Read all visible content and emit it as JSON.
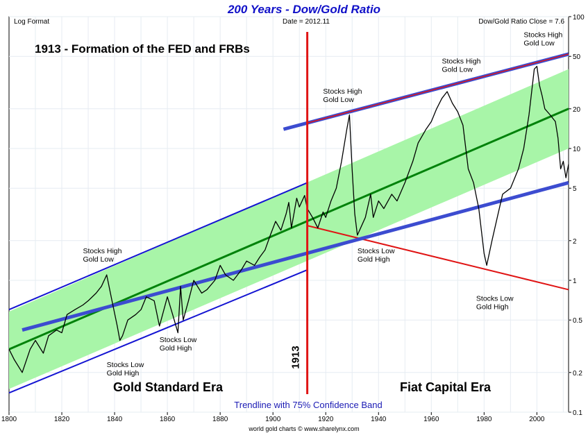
{
  "chart_data": {
    "type": "line",
    "title": "200 Years - Dow/Gold Ratio",
    "header_left": "Log Format",
    "header_date": "Date = 2012.11",
    "header_close": "Dow/Gold Ratio Close = 7.6",
    "headline": "1913 - Formation of the FED and FRBs",
    "marker_label": "1913",
    "marker_year": 1913,
    "era_left": "Gold Standard Era",
    "era_right": "Fiat Capital Era",
    "band_caption": "Trendline with 75% Confidence Band",
    "footer": "world gold charts © www.sharelynx.com",
    "x_range": [
      1800,
      2012
    ],
    "y_range": [
      0.1,
      100
    ],
    "y_scale": "log",
    "y_axis_side": "right",
    "grid": true,
    "x_ticks": [
      "1800",
      "1820",
      "1840",
      "1860",
      "1880",
      "1900",
      "1920",
      "1940",
      "1960",
      "1980",
      "2000"
    ],
    "y_ticks": [
      {
        "v": 100,
        "label": "100"
      },
      {
        "v": 50,
        "label": "50"
      },
      {
        "v": 20,
        "label": "20"
      },
      {
        "v": 10,
        "label": "10"
      },
      {
        "v": 5,
        "label": "5"
      },
      {
        "v": 2,
        "label": "2"
      },
      {
        "v": 1,
        "label": "1"
      },
      {
        "v": 0.5,
        "label": "0.5"
      },
      {
        "v": 0.2,
        "label": "0.2"
      },
      {
        "v": 0.1,
        "label": "0.1"
      }
    ],
    "colors": {
      "ratio": "#000000",
      "trend": "#00820a",
      "band": "#a8f5a8",
      "channel_old": "#1414d2",
      "channel_support": "#3c4cd0",
      "channel_new_top": "#e01414",
      "marker": "#e01414",
      "title": "#1010c8"
    },
    "series": [
      {
        "x": [
          1800,
          1802,
          1805,
          1808,
          1810,
          1813,
          1815,
          1818,
          1820,
          1822,
          1825,
          1828,
          1830,
          1833,
          1835,
          1837,
          1839,
          1841,
          1842,
          1843,
          1845,
          1848,
          1850,
          1852,
          1855,
          1857,
          1860,
          1862,
          1864,
          1865,
          1866,
          1868,
          1870,
          1873,
          1875,
          1878,
          1880,
          1882,
          1885,
          1888,
          1890,
          1893,
          1895,
          1897,
          1899,
          1901,
          1903,
          1905,
          1906,
          1907,
          1909,
          1910,
          1912,
          1913,
          1915,
          1917,
          1919,
          1920,
          1922,
          1924,
          1926,
          1928,
          1929,
          1930,
          1931,
          1932,
          1935,
          1937,
          1938,
          1940,
          1942,
          1945,
          1947,
          1950,
          1953,
          1955,
          1958,
          1960,
          1962,
          1964,
          1966,
          1968,
          1970,
          1972,
          1974,
          1976,
          1978,
          1980,
          1981,
          1983,
          1985,
          1987,
          1990,
          1993,
          1995,
          1997,
          1999,
          2000,
          2001,
          2002,
          2003,
          2005,
          2007,
          2008,
          2009,
          2010,
          2011,
          2012
        ],
        "y": [
          0.3,
          0.25,
          0.2,
          0.3,
          0.35,
          0.28,
          0.38,
          0.42,
          0.4,
          0.55,
          0.6,
          0.65,
          0.7,
          0.8,
          0.9,
          1.1,
          0.7,
          0.45,
          0.35,
          0.38,
          0.5,
          0.55,
          0.6,
          0.75,
          0.7,
          0.45,
          0.75,
          0.55,
          0.4,
          0.9,
          0.5,
          0.7,
          1.0,
          0.8,
          0.85,
          1.0,
          1.3,
          1.1,
          1.0,
          1.2,
          1.4,
          1.3,
          1.5,
          1.7,
          2.2,
          2.8,
          2.4,
          3.2,
          3.9,
          2.5,
          4.2,
          3.6,
          4.4,
          3.5,
          3.0,
          2.5,
          3.3,
          3.0,
          4.0,
          5.0,
          8.0,
          14.0,
          18.0,
          7.0,
          3.2,
          2.2,
          3.0,
          4.5,
          3.0,
          4.0,
          3.5,
          4.5,
          4.0,
          5.5,
          8.0,
          11.0,
          14.0,
          16.0,
          20.0,
          24.0,
          27.0,
          22.0,
          19.0,
          15.0,
          7.0,
          5.5,
          3.5,
          1.6,
          1.3,
          2.0,
          3.0,
          4.5,
          5.0,
          7.0,
          10.0,
          18.0,
          40.0,
          42.0,
          30.0,
          25.0,
          20.0,
          18.0,
          16.0,
          12.0,
          7.0,
          8.0,
          6.0,
          7.6
        ]
      }
    ],
    "trend": {
      "x": [
        1800,
        2012
      ],
      "y": [
        0.3,
        20.0
      ]
    },
    "band": {
      "upper": [
        0.58,
        40.0
      ],
      "lower": [
        0.15,
        10.0
      ]
    },
    "channel_old": {
      "x": [
        1800,
        1913
      ],
      "upper": [
        0.6,
        5.5
      ],
      "lower": [
        0.14,
        1.2
      ]
    },
    "channel_support": {
      "x": [
        1805,
        2012
      ],
      "y": [
        0.42,
        5.5
      ]
    },
    "channel_new_top": {
      "x": [
        1904,
        2012
      ],
      "y": [
        14.0,
        52.0
      ]
    },
    "channel_new_bottom": {
      "x": [
        1913,
        2012
      ],
      "y": [
        2.6,
        0.85
      ]
    },
    "annotations": [
      {
        "line1": "Stocks High",
        "line2": "Gold Low",
        "x": 1828,
        "y": 1.6
      },
      {
        "line1": "Stocks Low",
        "line2": "Gold High",
        "x": 1837,
        "y": 0.22
      },
      {
        "line1": "Stocks Low",
        "line2": "Gold High",
        "x": 1857,
        "y": 0.34
      },
      {
        "line1": "Stocks High",
        "line2": "Gold Low",
        "x": 1919,
        "y": 26
      },
      {
        "line1": "Stocks Low",
        "line2": "Gold High",
        "x": 1932,
        "y": 1.6
      },
      {
        "line1": "Stocks High",
        "line2": "Gold Low",
        "x": 1964,
        "y": 44
      },
      {
        "line1": "Stocks Low",
        "line2": "Gold High",
        "x": 1977,
        "y": 0.7
      },
      {
        "line1": "Stocks High",
        "line2": "Gold Low",
        "x": 1995,
        "y": 70
      }
    ]
  }
}
